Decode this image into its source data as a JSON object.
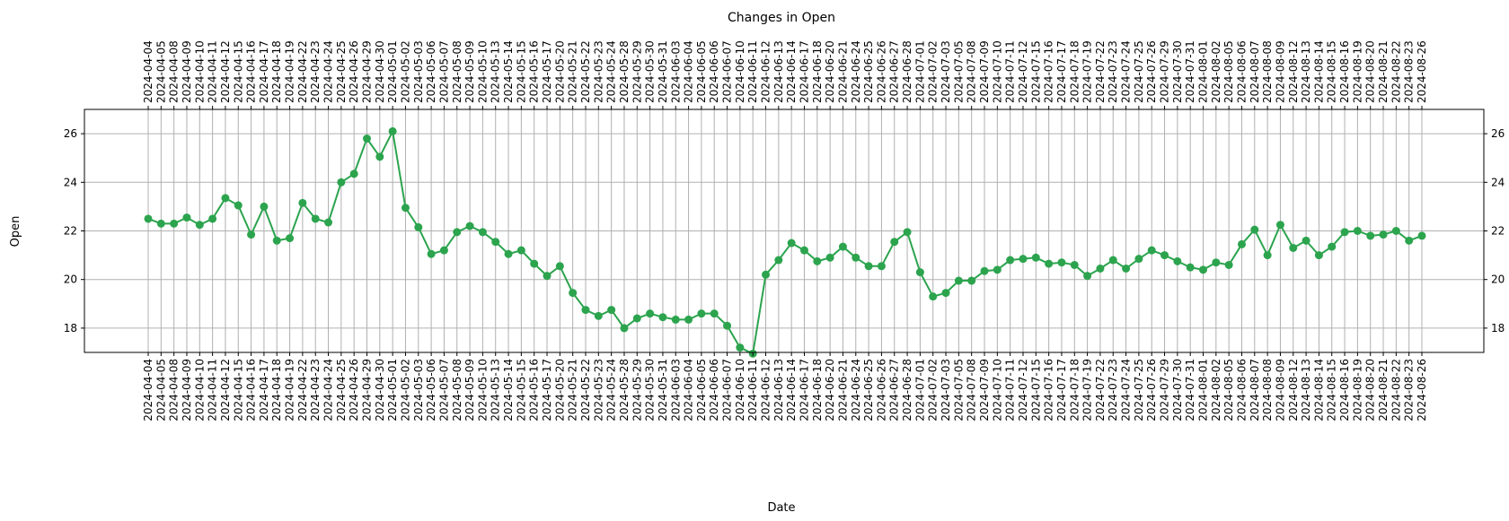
{
  "chart_data": {
    "type": "line",
    "title": "Changes in Open",
    "xlabel": "Date",
    "ylabel": "Open",
    "ylim": [
      17.0,
      27.0
    ],
    "yticks": [
      18,
      20,
      22,
      24,
      26
    ],
    "grid": true,
    "line_color": "#2ca44e",
    "x": [
      "2024-04-04",
      "2024-04-05",
      "2024-04-08",
      "2024-04-09",
      "2024-04-10",
      "2024-04-11",
      "2024-04-12",
      "2024-04-15",
      "2024-04-16",
      "2024-04-17",
      "2024-04-18",
      "2024-04-19",
      "2024-04-22",
      "2024-04-23",
      "2024-04-24",
      "2024-04-25",
      "2024-04-26",
      "2024-04-29",
      "2024-04-30",
      "2024-05-01",
      "2024-05-02",
      "2024-05-03",
      "2024-05-06",
      "2024-05-07",
      "2024-05-08",
      "2024-05-09",
      "2024-05-10",
      "2024-05-13",
      "2024-05-14",
      "2024-05-15",
      "2024-05-16",
      "2024-05-17",
      "2024-05-20",
      "2024-05-21",
      "2024-05-22",
      "2024-05-23",
      "2024-05-24",
      "2024-05-28",
      "2024-05-29",
      "2024-05-30",
      "2024-05-31",
      "2024-06-03",
      "2024-06-04",
      "2024-06-05",
      "2024-06-06",
      "2024-06-07",
      "2024-06-10",
      "2024-06-11",
      "2024-06-12",
      "2024-06-13",
      "2024-06-14",
      "2024-06-17",
      "2024-06-18",
      "2024-06-20",
      "2024-06-21",
      "2024-06-24",
      "2024-06-25",
      "2024-06-26",
      "2024-06-27",
      "2024-06-28",
      "2024-07-01",
      "2024-07-02",
      "2024-07-03",
      "2024-07-05",
      "2024-07-08",
      "2024-07-09",
      "2024-07-10",
      "2024-07-11",
      "2024-07-12",
      "2024-07-15",
      "2024-07-16",
      "2024-07-17",
      "2024-07-18",
      "2024-07-19",
      "2024-07-22",
      "2024-07-23",
      "2024-07-24",
      "2024-07-25",
      "2024-07-26",
      "2024-07-29",
      "2024-07-30",
      "2024-07-31",
      "2024-08-01",
      "2024-08-02",
      "2024-08-05",
      "2024-08-06",
      "2024-08-07",
      "2024-08-08",
      "2024-08-09",
      "2024-08-12",
      "2024-08-13",
      "2024-08-14",
      "2024-08-15",
      "2024-08-16",
      "2024-08-19",
      "2024-08-20",
      "2024-08-21",
      "2024-08-22",
      "2024-08-23",
      "2024-08-26"
    ],
    "series": [
      {
        "values": [
          22.5,
          22.3,
          22.3,
          22.55,
          22.25,
          22.5,
          23.35,
          23.05,
          21.85,
          23.0,
          21.6,
          21.7,
          23.15,
          22.5,
          22.35,
          24.0,
          24.35,
          25.8,
          25.05,
          26.1,
          22.95,
          22.15,
          21.05,
          21.2,
          21.95,
          22.2,
          21.95,
          21.55,
          21.05,
          21.2,
          20.65,
          20.15,
          20.55,
          19.45,
          18.75,
          18.5,
          18.75,
          18.0,
          18.4,
          18.6,
          18.45,
          18.35,
          18.35,
          18.6,
          18.6,
          18.1,
          17.2,
          16.95,
          20.2,
          20.8,
          21.5,
          21.2,
          20.75,
          20.9,
          21.35,
          20.9,
          20.55,
          20.55,
          21.55,
          21.95,
          20.3,
          19.3,
          19.45,
          19.95,
          19.95,
          20.35,
          20.4,
          20.8,
          20.85,
          20.9,
          20.65,
          20.7,
          20.6,
          20.15,
          20.45,
          20.8,
          20.45,
          20.85,
          21.2,
          21.0,
          20.75,
          20.5,
          20.4,
          20.7,
          20.6,
          21.45,
          22.05,
          21.0,
          22.25,
          21.3,
          21.6,
          21.0,
          21.35,
          21.95,
          22.0,
          21.8,
          21.85,
          22.0,
          21.6,
          21.8
        ]
      }
    ]
  }
}
